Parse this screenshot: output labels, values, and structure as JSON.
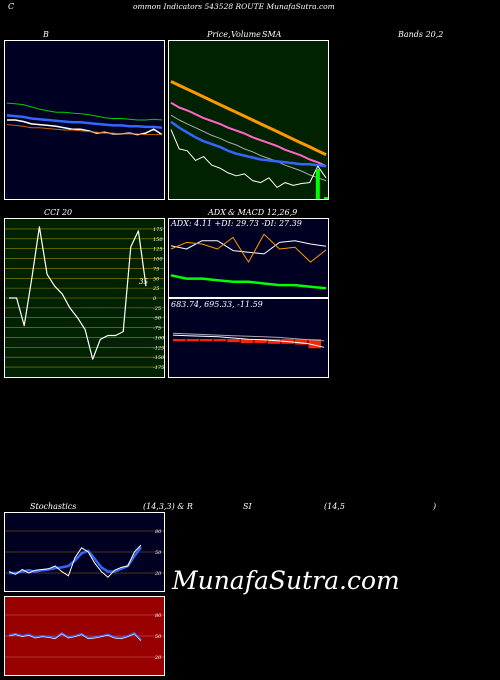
{
  "header": {
    "title_prefix": "C",
    "title_main": "ommon  Indicators 543528  ROUTE MunafaSutra.com"
  },
  "watermark": "MunafaSutra.com",
  "labels": {
    "bands_b": "B",
    "price_label": "Price,",
    "volume_label": "Volume",
    "sma_label": "SMA",
    "bands_tail": "Bands 20,2",
    "cci_label": "CCI 20",
    "adx_label": "ADX",
    "macd_label": "& MACD 12,26,9",
    "adx_values": "ADX: 4.11  +DI: 29.73  -DI: 27.39",
    "macd_values": "683.74,  695.33,  -11.59",
    "stoch_label": "Stochastics",
    "stoch_params": "(14,3,3) & R",
    "rsi_label": "SI",
    "rsi_params": "(14,5",
    "rsi_close": ")"
  },
  "colors": {
    "bands_bg": "#000022",
    "price_bg": "#002200",
    "cci_bg": "#002200",
    "adx_bg": "#000022",
    "stoch_bg": "#000022",
    "rsi_bg": "#990000",
    "panel_border": "#ffffff",
    "orange": "#ff9900",
    "blue": "#3366ff",
    "green_bright": "#00ff00",
    "pink": "#ff66cc"
  },
  "chart_data": [
    {
      "type": "line",
      "panel": "bollinger",
      "series": [
        {
          "values": [
            78,
            79,
            80,
            83,
            86,
            88,
            90,
            90,
            91,
            92,
            93,
            95,
            97,
            98,
            98,
            99,
            100,
            100,
            99,
            100
          ]
        },
        {
          "values": [
            94,
            95,
            96,
            98,
            99,
            100,
            101,
            102,
            103,
            103,
            104,
            105,
            106,
            107,
            107,
            108,
            108,
            109,
            109,
            110
          ]
        },
        {
          "values": [
            100,
            100,
            102,
            105,
            106,
            107,
            108,
            110,
            112,
            112,
            114,
            117,
            116,
            118,
            118,
            117,
            119,
            117,
            112,
            119
          ]
        },
        {
          "values": [
            106,
            107,
            108,
            110,
            110,
            111,
            112,
            113,
            113,
            114,
            115,
            116,
            117,
            117,
            118,
            118,
            118,
            119,
            119,
            119
          ]
        }
      ]
    },
    {
      "type": "line",
      "panel": "price_sma",
      "series": [
        {
          "values": [
            40,
            44,
            48,
            52,
            56,
            60,
            64,
            68,
            72,
            76,
            80,
            84,
            88,
            92,
            96,
            100,
            104,
            108,
            112,
            116
          ]
        },
        {
          "values": [
            75,
            80,
            84,
            88,
            92,
            96,
            99,
            103,
            106,
            110,
            113,
            117,
            120,
            123,
            127,
            130,
            133,
            137,
            140,
            143
          ]
        },
        {
          "values": [
            62,
            67,
            70,
            74,
            78,
            81,
            84,
            88,
            91,
            94,
            98,
            101,
            104,
            107,
            111,
            114,
            117,
            121,
            124,
            128
          ]
        },
        {
          "values": [
            82,
            88,
            93,
            98,
            102,
            105,
            108,
            112,
            115,
            117,
            119,
            121,
            122,
            123,
            124,
            125,
            126,
            126,
            127,
            128
          ]
        },
        {
          "values": [
            90,
            110,
            112,
            122,
            118,
            127,
            130,
            135,
            138,
            136,
            143,
            145,
            140,
            150,
            145,
            148,
            146,
            145,
            128,
            140
          ]
        }
      ],
      "volume": [
        0,
        0,
        0,
        0,
        0,
        0,
        0,
        0,
        0,
        0,
        0,
        0,
        0,
        0,
        0,
        0,
        0,
        0,
        30,
        2
      ]
    },
    {
      "type": "line",
      "panel": "cci",
      "yticks": [
        175,
        150,
        125,
        100,
        75,
        50,
        25,
        0,
        -25,
        -50,
        -75,
        -100,
        -125,
        -150,
        -175
      ],
      "values": [
        0,
        0,
        -70,
        50,
        180,
        60,
        30,
        10,
        -25,
        -50,
        -80,
        -155,
        -105,
        -95,
        -95,
        -85,
        130,
        170,
        30
      ],
      "last_label": "35"
    },
    {
      "type": "line",
      "panel": "adx",
      "series": [
        {
          "name": "+DI",
          "values": [
            30,
            28,
            33,
            33,
            27,
            26,
            25,
            32,
            33,
            31,
            29.7
          ]
        },
        {
          "name": "-DI",
          "values": [
            28,
            32,
            31,
            28,
            35,
            20,
            37,
            28,
            29,
            20,
            27.4
          ]
        },
        {
          "name": "ADX",
          "values": [
            12,
            10,
            10,
            9,
            8,
            8,
            7,
            6,
            6,
            5,
            4.1
          ]
        }
      ]
    },
    {
      "type": "line",
      "panel": "macd",
      "series": [
        {
          "values": [
            705,
            704,
            703,
            702,
            700,
            698,
            697,
            695,
            693,
            690,
            684
          ]
        },
        {
          "values": [
            708,
            707,
            706,
            705,
            704,
            703,
            702,
            701,
            699,
            697,
            695
          ]
        }
      ],
      "histogram": [
        -3,
        -3,
        -3,
        -3,
        -4,
        -5,
        -5,
        -6,
        -6,
        -7,
        -11.6
      ]
    },
    {
      "type": "line",
      "panel": "stochastics",
      "yticks": [
        80,
        50,
        20
      ],
      "series": [
        {
          "values": [
            22,
            18,
            25,
            20,
            24,
            25,
            26,
            30,
            22,
            16,
            42,
            56,
            50,
            34,
            22,
            14,
            24,
            28,
            30,
            50,
            60
          ]
        },
        {
          "values": [
            20,
            20,
            22,
            24,
            22,
            24,
            25,
            27,
            28,
            30,
            38,
            48,
            52,
            40,
            28,
            22,
            22,
            26,
            30,
            44,
            57
          ]
        }
      ]
    },
    {
      "type": "line",
      "panel": "rsi",
      "yticks": [
        80,
        50,
        20
      ],
      "values": [
        51,
        53,
        50,
        52,
        48,
        50,
        49,
        47,
        54,
        48,
        50,
        53,
        47,
        48,
        50,
        52,
        48,
        47,
        50,
        54,
        44
      ]
    }
  ]
}
